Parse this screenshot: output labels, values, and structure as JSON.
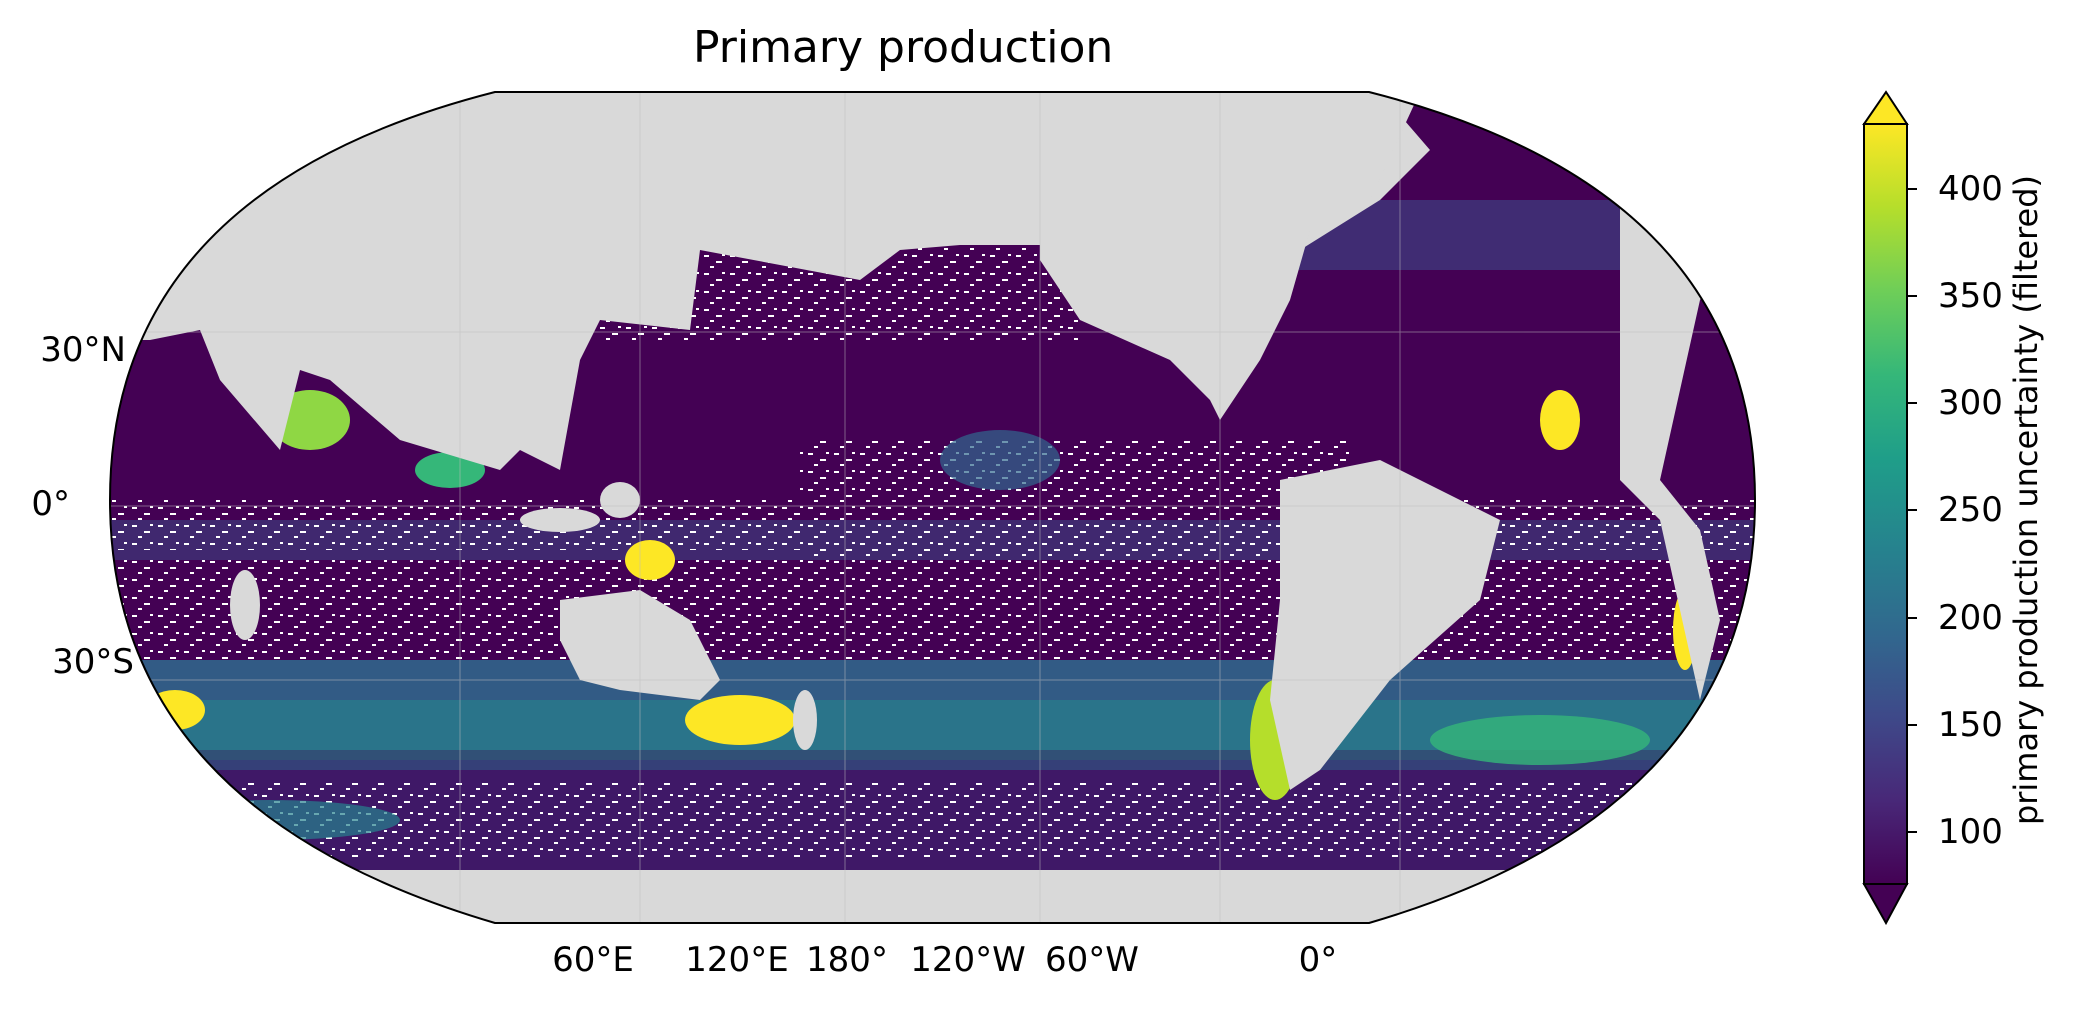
{
  "title": "Primary production",
  "map": {
    "projection": "Robinson",
    "land_color": "#d9d9d9",
    "ocean_missing_color": "#ffffff",
    "gridlines": true,
    "lat_labels": [
      "30°N",
      "0°",
      "30°S"
    ],
    "lon_labels": [
      "60°E",
      "120°E",
      "180°",
      "120°W",
      "60°W",
      "0°"
    ]
  },
  "colorbar": {
    "colormap": "viridis",
    "label": "primary production uncertainty (filtered)",
    "ticks": [
      "100",
      "150",
      "200",
      "250",
      "300",
      "350",
      "400"
    ],
    "range": [
      70,
      425
    ],
    "extend": "both",
    "stops": [
      "#440154",
      "#482878",
      "#3e4989",
      "#31688e",
      "#26828e",
      "#1f9e89",
      "#35b779",
      "#6ece58",
      "#b5de2b",
      "#fde725"
    ]
  }
}
